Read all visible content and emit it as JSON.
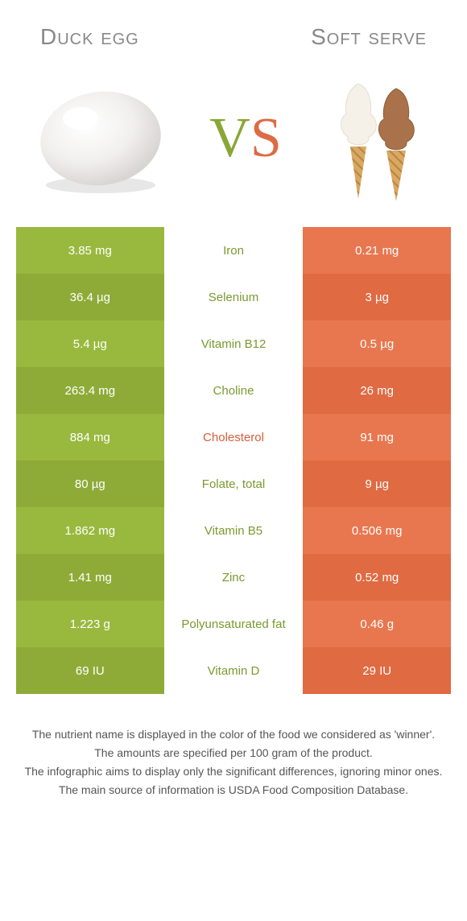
{
  "header": {
    "left": "Duck egg",
    "right": "Soft serve"
  },
  "vs": {
    "v": "V",
    "s": "S"
  },
  "colors": {
    "left_a": "#99b93e",
    "left_b": "#8eab38",
    "right_a": "#e8774f",
    "right_b": "#e06a42",
    "mid_green": "#7a9a2f",
    "mid_orange": "#d55f3a"
  },
  "rows": [
    {
      "left": "3.85 mg",
      "name": "Iron",
      "right": "0.21 mg",
      "winner": "left"
    },
    {
      "left": "36.4 µg",
      "name": "Selenium",
      "right": "3 µg",
      "winner": "left"
    },
    {
      "left": "5.4 µg",
      "name": "Vitamin B12",
      "right": "0.5 µg",
      "winner": "left"
    },
    {
      "left": "263.4 mg",
      "name": "Choline",
      "right": "26 mg",
      "winner": "left"
    },
    {
      "left": "884 mg",
      "name": "Cholesterol",
      "right": "91 mg",
      "winner": "right"
    },
    {
      "left": "80 µg",
      "name": "Folate, total",
      "right": "9 µg",
      "winner": "left"
    },
    {
      "left": "1.862 mg",
      "name": "Vitamin B5",
      "right": "0.506 mg",
      "winner": "left"
    },
    {
      "left": "1.41 mg",
      "name": "Zinc",
      "right": "0.52 mg",
      "winner": "left"
    },
    {
      "left": "1.223 g",
      "name": "Polyunsaturated fat",
      "right": "0.46 g",
      "winner": "left"
    },
    {
      "left": "69 IU",
      "name": "Vitamin D",
      "right": "29 IU",
      "winner": "left"
    }
  ],
  "footer": [
    "The nutrient name is displayed in the color of the food we considered as 'winner'.",
    "The amounts are specified per 100 gram of the product.",
    "The infographic aims to display only the significant differences, ignoring minor ones.",
    "The main source of information is USDA Food Composition Database."
  ]
}
